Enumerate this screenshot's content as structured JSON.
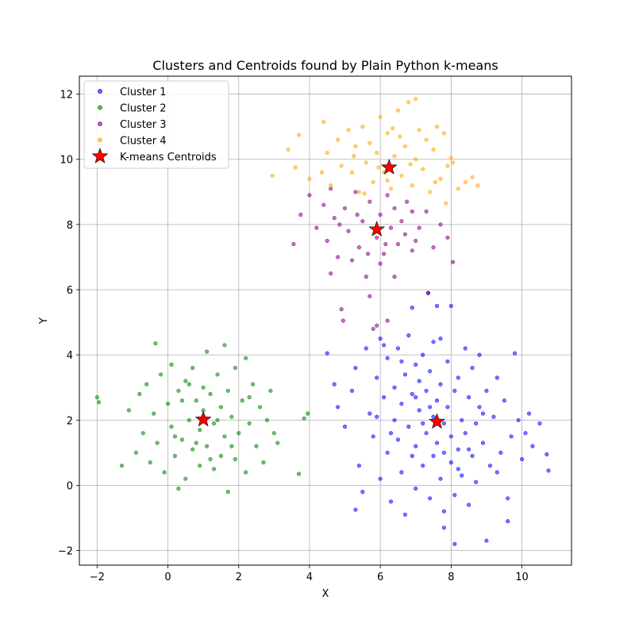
{
  "chart_data": {
    "type": "scatter",
    "title": "Clusters and Centroids found by Plain Python k-means",
    "xlabel": "X",
    "ylabel": "Y",
    "xlim": [
      -2.5,
      11.4
    ],
    "ylim": [
      -2.45,
      12.55
    ],
    "xticks": [
      -2,
      0,
      2,
      4,
      6,
      8,
      10
    ],
    "yticks": [
      -2,
      0,
      2,
      4,
      6,
      8,
      10,
      12
    ],
    "xtick_labels": [
      "−2",
      "0",
      "2",
      "4",
      "6",
      "8",
      "10"
    ],
    "ytick_labels": [
      "−2",
      "0",
      "2",
      "4",
      "6",
      "8",
      "10",
      "12"
    ],
    "grid": true,
    "legend_placement": "top-left",
    "series": [
      {
        "name": "Cluster 1",
        "color": "#0000ff",
        "points": [
          [
            4.5,
            4.05
          ],
          [
            4.7,
            3.1
          ],
          [
            4.8,
            2.4
          ],
          [
            5.0,
            1.8
          ],
          [
            5.2,
            2.9
          ],
          [
            5.3,
            3.6
          ],
          [
            5.4,
            0.6
          ],
          [
            5.5,
            -0.2
          ],
          [
            5.6,
            4.2
          ],
          [
            5.7,
            2.2
          ],
          [
            5.8,
            1.5
          ],
          [
            5.9,
            3.3
          ],
          [
            6.0,
            0.2
          ],
          [
            6.0,
            4.5
          ],
          [
            6.1,
            2.7
          ],
          [
            6.2,
            1.0
          ],
          [
            6.2,
            3.9
          ],
          [
            6.3,
            -0.5
          ],
          [
            6.4,
            2.0
          ],
          [
            6.4,
            3.0
          ],
          [
            6.5,
            1.4
          ],
          [
            6.5,
            4.2
          ],
          [
            6.6,
            0.4
          ],
          [
            6.6,
            2.5
          ],
          [
            6.7,
            3.4
          ],
          [
            6.7,
            -0.9
          ],
          [
            6.8,
            1.8
          ],
          [
            6.8,
            4.6
          ],
          [
            6.9,
            0.9
          ],
          [
            6.9,
            2.8
          ],
          [
            7.0,
            3.7
          ],
          [
            7.0,
            1.2
          ],
          [
            7.0,
            -0.1
          ],
          [
            7.1,
            2.3
          ],
          [
            7.1,
            3.2
          ],
          [
            7.2,
            0.6
          ],
          [
            7.2,
            4.0
          ],
          [
            7.3,
            1.6
          ],
          [
            7.3,
            2.9
          ],
          [
            7.4,
            -0.4
          ],
          [
            7.4,
            3.5
          ],
          [
            7.5,
            0.9
          ],
          [
            7.5,
            2.1
          ],
          [
            7.5,
            4.4
          ],
          [
            7.6,
            1.3
          ],
          [
            7.6,
            2.6
          ],
          [
            7.7,
            0.2
          ],
          [
            7.7,
            3.1
          ],
          [
            7.8,
            1.9
          ],
          [
            7.8,
            -0.8
          ],
          [
            7.9,
            2.4
          ],
          [
            7.9,
            3.8
          ],
          [
            8.0,
            0.7
          ],
          [
            8.0,
            1.5
          ],
          [
            8.0,
            5.5
          ],
          [
            8.1,
            2.9
          ],
          [
            8.1,
            -0.3
          ],
          [
            8.2,
            1.1
          ],
          [
            8.2,
            3.3
          ],
          [
            8.3,
            2.0
          ],
          [
            8.3,
            0.3
          ],
          [
            8.4,
            4.2
          ],
          [
            8.4,
            1.6
          ],
          [
            8.5,
            2.7
          ],
          [
            8.5,
            -0.6
          ],
          [
            8.6,
            0.9
          ],
          [
            8.6,
            3.6
          ],
          [
            8.7,
            1.9
          ],
          [
            8.7,
            0.1
          ],
          [
            8.8,
            2.4
          ],
          [
            8.8,
            4.0
          ],
          [
            8.9,
            1.3
          ],
          [
            9.0,
            2.9
          ],
          [
            9.0,
            -1.7
          ],
          [
            9.1,
            0.6
          ],
          [
            9.2,
            2.1
          ],
          [
            9.3,
            3.3
          ],
          [
            9.4,
            1.0
          ],
          [
            9.5,
            2.6
          ],
          [
            9.6,
            -0.4
          ],
          [
            9.7,
            1.5
          ],
          [
            9.8,
            4.05
          ],
          [
            9.9,
            2.0
          ],
          [
            10.0,
            0.8
          ],
          [
            10.1,
            1.6
          ],
          [
            10.2,
            2.2
          ],
          [
            10.3,
            1.2
          ],
          [
            10.5,
            1.9
          ],
          [
            10.7,
            0.95
          ],
          [
            10.75,
            0.45
          ],
          [
            7.35,
            5.9
          ],
          [
            7.6,
            5.5
          ],
          [
            6.9,
            5.45
          ],
          [
            7.8,
            -1.3
          ],
          [
            8.1,
            -1.8
          ],
          [
            9.6,
            -1.1
          ],
          [
            5.3,
            -0.75
          ],
          [
            6.1,
            4.3
          ],
          [
            7.4,
            2.4
          ],
          [
            7.2,
            1.9
          ],
          [
            7.8,
            1.0
          ],
          [
            8.5,
            1.1
          ],
          [
            6.3,
            1.6
          ],
          [
            7.0,
            2.7
          ],
          [
            8.9,
            2.2
          ],
          [
            6.6,
            3.8
          ],
          [
            7.7,
            4.5
          ],
          [
            8.2,
            0.5
          ],
          [
            5.9,
            2.1
          ],
          [
            9.3,
            0.4
          ]
        ]
      },
      {
        "name": "Cluster 2",
        "color": "#008000",
        "points": [
          [
            -2.0,
            2.7
          ],
          [
            -1.95,
            2.55
          ],
          [
            -1.3,
            0.6
          ],
          [
            -1.1,
            2.3
          ],
          [
            -0.9,
            1.0
          ],
          [
            -0.8,
            2.8
          ],
          [
            -0.7,
            1.6
          ],
          [
            -0.6,
            3.1
          ],
          [
            -0.5,
            0.7
          ],
          [
            -0.4,
            2.2
          ],
          [
            -0.35,
            4.35
          ],
          [
            -0.3,
            1.3
          ],
          [
            -0.2,
            3.4
          ],
          [
            -0.1,
            0.4
          ],
          [
            0.0,
            2.5
          ],
          [
            0.1,
            1.8
          ],
          [
            0.1,
            3.7
          ],
          [
            0.2,
            0.9
          ],
          [
            0.3,
            -0.1
          ],
          [
            0.3,
            2.9
          ],
          [
            0.4,
            1.4
          ],
          [
            0.5,
            3.2
          ],
          [
            0.5,
            0.2
          ],
          [
            0.6,
            2.0
          ],
          [
            0.7,
            1.1
          ],
          [
            0.7,
            3.6
          ],
          [
            0.8,
            2.6
          ],
          [
            0.9,
            0.6
          ],
          [
            0.9,
            1.7
          ],
          [
            1.0,
            3.0
          ],
          [
            1.0,
            2.3
          ],
          [
            1.1,
            4.1
          ],
          [
            1.1,
            1.2
          ],
          [
            1.2,
            2.8
          ],
          [
            1.3,
            0.5
          ],
          [
            1.3,
            1.9
          ],
          [
            1.4,
            3.4
          ],
          [
            1.5,
            2.4
          ],
          [
            1.5,
            0.9
          ],
          [
            1.6,
            4.3
          ],
          [
            1.6,
            1.5
          ],
          [
            1.7,
            -0.2
          ],
          [
            1.7,
            2.9
          ],
          [
            1.8,
            2.1
          ],
          [
            1.9,
            0.8
          ],
          [
            1.9,
            3.6
          ],
          [
            2.0,
            1.6
          ],
          [
            2.1,
            2.6
          ],
          [
            2.2,
            0.4
          ],
          [
            2.2,
            3.9
          ],
          [
            2.3,
            1.9
          ],
          [
            2.4,
            3.1
          ],
          [
            2.5,
            1.2
          ],
          [
            2.6,
            2.4
          ],
          [
            2.7,
            0.7
          ],
          [
            2.8,
            2.0
          ],
          [
            2.9,
            2.9
          ],
          [
            3.0,
            1.6
          ],
          [
            3.1,
            1.3
          ],
          [
            3.7,
            0.35
          ],
          [
            3.85,
            2.05
          ],
          [
            3.95,
            2.2
          ],
          [
            0.8,
            1.3
          ],
          [
            1.4,
            2.0
          ],
          [
            0.4,
            2.6
          ],
          [
            1.8,
            1.2
          ],
          [
            2.3,
            2.7
          ],
          [
            0.2,
            1.5
          ],
          [
            1.2,
            0.8
          ],
          [
            0.6,
            3.1
          ]
        ]
      },
      {
        "name": "Cluster 3",
        "color": "#800080",
        "points": [
          [
            3.55,
            7.4
          ],
          [
            3.75,
            8.3
          ],
          [
            4.0,
            8.9
          ],
          [
            4.2,
            7.9
          ],
          [
            4.4,
            8.6
          ],
          [
            4.5,
            7.5
          ],
          [
            4.6,
            6.5
          ],
          [
            4.6,
            9.1
          ],
          [
            4.7,
            8.2
          ],
          [
            4.8,
            7.0
          ],
          [
            4.9,
            5.4
          ],
          [
            4.95,
            5.05
          ],
          [
            5.0,
            8.5
          ],
          [
            5.1,
            7.8
          ],
          [
            5.2,
            6.9
          ],
          [
            5.3,
            9.0
          ],
          [
            5.4,
            7.3
          ],
          [
            5.5,
            8.1
          ],
          [
            5.6,
            6.4
          ],
          [
            5.7,
            5.8
          ],
          [
            5.7,
            8.7
          ],
          [
            5.8,
            4.8
          ],
          [
            5.9,
            7.6
          ],
          [
            5.9,
            4.9
          ],
          [
            6.0,
            8.3
          ],
          [
            6.0,
            6.8
          ],
          [
            6.1,
            7.1
          ],
          [
            6.2,
            8.9
          ],
          [
            6.2,
            5.05
          ],
          [
            6.3,
            7.9
          ],
          [
            6.4,
            6.4
          ],
          [
            6.4,
            8.5
          ],
          [
            6.5,
            7.4
          ],
          [
            6.6,
            8.1
          ],
          [
            6.7,
            7.7
          ],
          [
            6.9,
            8.4
          ],
          [
            6.9,
            7.2
          ],
          [
            7.1,
            7.9
          ],
          [
            7.3,
            8.4
          ],
          [
            7.35,
            5.9
          ],
          [
            7.5,
            7.3
          ],
          [
            7.7,
            8.0
          ],
          [
            7.9,
            7.6
          ],
          [
            8.05,
            6.85
          ],
          [
            5.35,
            8.3
          ],
          [
            6.75,
            8.7
          ],
          [
            5.65,
            7.1
          ],
          [
            6.15,
            7.4
          ],
          [
            4.85,
            8.0
          ],
          [
            7.0,
            7.5
          ]
        ]
      },
      {
        "name": "Cluster 4",
        "color": "#ffa500",
        "points": [
          [
            2.95,
            9.5
          ],
          [
            3.4,
            10.3
          ],
          [
            3.6,
            9.75
          ],
          [
            3.7,
            10.75
          ],
          [
            4.0,
            9.4
          ],
          [
            4.4,
            11.15
          ],
          [
            4.5,
            10.2
          ],
          [
            4.6,
            9.2
          ],
          [
            4.8,
            10.6
          ],
          [
            4.9,
            9.8
          ],
          [
            5.1,
            10.9
          ],
          [
            5.2,
            9.6
          ],
          [
            5.3,
            10.4
          ],
          [
            5.4,
            9.0
          ],
          [
            5.5,
            11.0
          ],
          [
            5.6,
            9.9
          ],
          [
            5.7,
            10.5
          ],
          [
            5.8,
            9.3
          ],
          [
            5.9,
            10.2
          ],
          [
            6.0,
            11.3
          ],
          [
            6.1,
            9.6
          ],
          [
            6.2,
            10.8
          ],
          [
            6.3,
            9.1
          ],
          [
            6.4,
            10.1
          ],
          [
            6.5,
            11.5
          ],
          [
            6.6,
            9.5
          ],
          [
            6.7,
            10.4
          ],
          [
            6.8,
            11.75
          ],
          [
            6.9,
            9.2
          ],
          [
            7.0,
            10.0
          ],
          [
            7.0,
            11.85
          ],
          [
            7.2,
            9.7
          ],
          [
            7.3,
            10.6
          ],
          [
            7.4,
            9.0
          ],
          [
            7.5,
            10.3
          ],
          [
            7.6,
            11.0
          ],
          [
            7.7,
            9.4
          ],
          [
            7.8,
            10.8
          ],
          [
            7.9,
            9.8
          ],
          [
            8.0,
            10.05
          ],
          [
            8.05,
            9.9
          ],
          [
            8.2,
            9.1
          ],
          [
            8.4,
            9.3
          ],
          [
            8.6,
            9.45
          ],
          [
            8.75,
            9.2
          ],
          [
            6.35,
            10.95
          ],
          [
            5.25,
            10.1
          ],
          [
            7.1,
            10.9
          ],
          [
            6.85,
            9.85
          ],
          [
            5.95,
            9.75
          ],
          [
            4.35,
            9.6
          ],
          [
            5.55,
            8.95
          ],
          [
            7.55,
            9.3
          ],
          [
            6.2,
            9.35
          ],
          [
            7.85,
            8.65
          ],
          [
            6.55,
            10.7
          ]
        ]
      }
    ],
    "centroids": {
      "name": "K-means Centroids",
      "color": "#ff0000",
      "points": [
        [
          7.6,
          1.95
        ],
        [
          1.0,
          2.02
        ],
        [
          5.9,
          7.85
        ],
        [
          6.25,
          9.75
        ]
      ]
    }
  }
}
